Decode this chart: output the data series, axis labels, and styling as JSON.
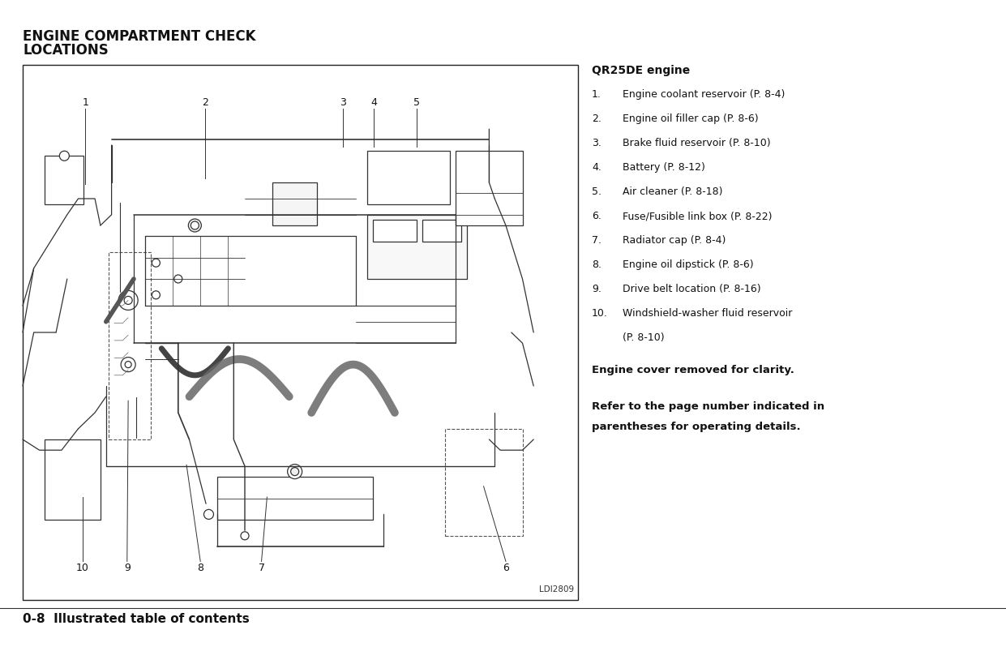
{
  "bg_color": "#ffffff",
  "title_line1": "ENGINE COMPARTMENT CHECK",
  "title_line2": "LOCATIONS",
  "title_fontsize": 12,
  "section_header": "QR25DE engine",
  "header_fontsize": 10,
  "items": [
    {
      "num": "1.",
      "text": "Engine coolant reservoir (P. 8-4)"
    },
    {
      "num": "2.",
      "text": "Engine oil filler cap (P. 8-6)"
    },
    {
      "num": "3.",
      "text": "Brake fluid reservoir (P. 8-10)"
    },
    {
      "num": "4.",
      "text": "Battery (P. 8-12)"
    },
    {
      "num": "5.",
      "text": "Air cleaner (P. 8-18)"
    },
    {
      "num": "6.",
      "text": "Fuse/Fusible link box (P. 8-22)"
    },
    {
      "num": "7.",
      "text": "Radiator cap (P. 8-4)"
    },
    {
      "num": "8.",
      "text": "Engine oil dipstick (P. 8-6)"
    },
    {
      "num": "9.",
      "text": "Drive belt location (P. 8-16)"
    },
    {
      "num": "10.",
      "text": "Windshield-washer fluid reservoir"
    }
  ],
  "item10_cont": "(P. 8-10)",
  "note1": "Engine cover removed for clarity.",
  "note2_line1": "Refer to the page number indicated in",
  "note2_line2": "parentheses for operating details.",
  "footer": "0-8  Illustrated table of contents",
  "diagram_label": "LDI2809",
  "item_fontsize": 9,
  "note_fontsize": 9.5,
  "footer_fontsize": 11
}
